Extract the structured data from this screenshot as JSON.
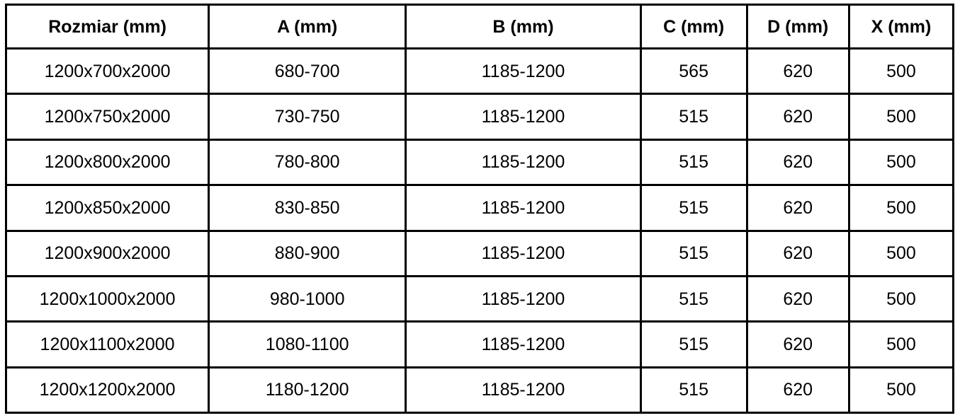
{
  "table": {
    "columns": [
      "Rozmiar (mm)",
      "A (mm)",
      "B (mm)",
      "C (mm)",
      "D (mm)",
      "X (mm)"
    ],
    "rows": [
      [
        "1200x700x2000",
        "680-700",
        "1185-1200",
        "565",
        "620",
        "500"
      ],
      [
        "1200x750x2000",
        "730-750",
        "1185-1200",
        "515",
        "620",
        "500"
      ],
      [
        "1200x800x2000",
        "780-800",
        "1185-1200",
        "515",
        "620",
        "500"
      ],
      [
        "1200x850x2000",
        "830-850",
        "1185-1200",
        "515",
        "620",
        "500"
      ],
      [
        "1200x900x2000",
        "880-900",
        "1185-1200",
        "515",
        "620",
        "500"
      ],
      [
        "1200x1000x2000",
        "980-1000",
        "1185-1200",
        "515",
        "620",
        "500"
      ],
      [
        "1200x1100x2000",
        "1080-1100",
        "1185-1200",
        "515",
        "620",
        "500"
      ],
      [
        "1200x1200x2000",
        "1180-1200",
        "1185-1200",
        "515",
        "620",
        "500"
      ]
    ],
    "border_color": "#000000",
    "text_color": "#000000",
    "background_color": "#ffffff"
  }
}
